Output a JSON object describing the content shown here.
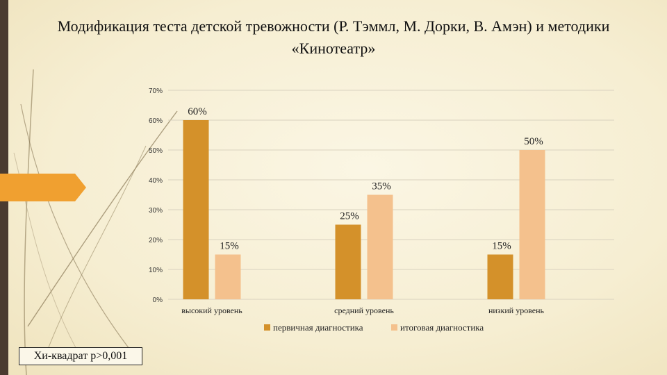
{
  "title": "Модификация теста детской тревожности (Р. Тэммл, М. Дорки, В. Амэн) и методики «Кинотеатр»",
  "note": "Хи-квадрат p>0,001",
  "colors": {
    "primary": "#d4912a",
    "final": "#f4c18d",
    "accent": "#f0a030",
    "sidebar": "#4a3b30"
  },
  "chart_data": {
    "type": "bar",
    "categories": [
      "высокий уровень",
      "средний уровень",
      "низкий уровень"
    ],
    "series": [
      {
        "name": "первичная диагностика",
        "values": [
          60,
          25,
          15
        ],
        "labels": [
          "60%",
          "25%",
          "15%"
        ]
      },
      {
        "name": "итоговая диагностика",
        "values": [
          15,
          35,
          50
        ],
        "labels": [
          "15%",
          "35%",
          "50%"
        ]
      }
    ],
    "yticks": [
      "0%",
      "10%",
      "20%",
      "30%",
      "40%",
      "50%",
      "60%",
      "70%"
    ],
    "ylim": [
      0,
      70
    ],
    "grid": true,
    "legend": "bottom"
  }
}
